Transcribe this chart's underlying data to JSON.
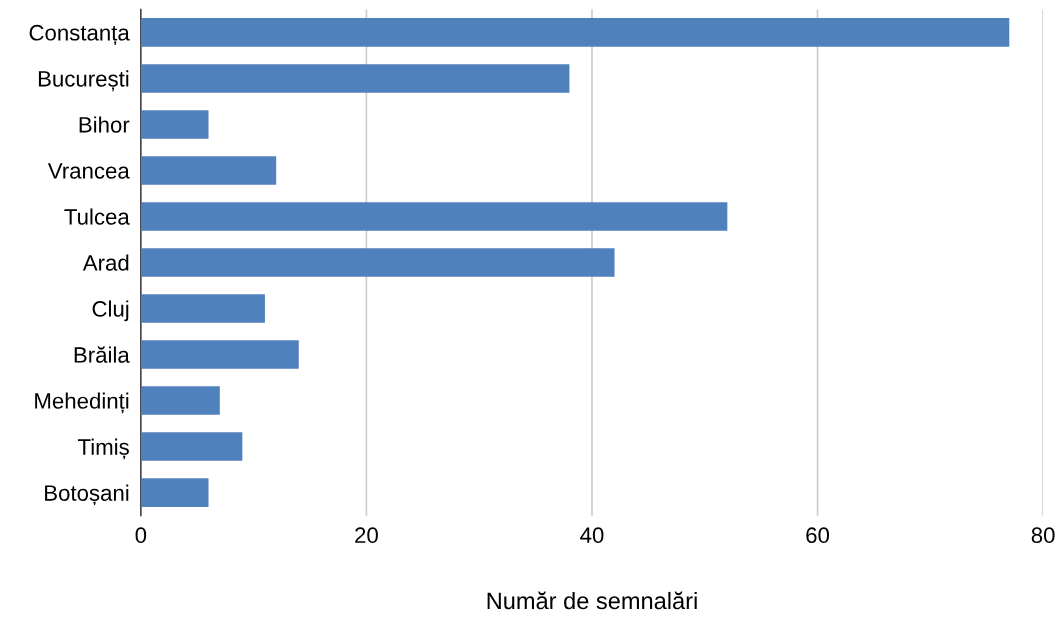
{
  "chart_data": {
    "type": "bar",
    "orientation": "horizontal",
    "xlabel": "Număr de semnalări",
    "categories": [
      "Constanța",
      "București",
      "Bihor",
      "Vrancea",
      "Tulcea",
      "Arad",
      "Cluj",
      "Brăila",
      "Mehedinți",
      "Timiș",
      "Botoșani"
    ],
    "values": [
      77,
      38,
      6,
      12,
      52,
      42,
      11,
      14,
      7,
      9,
      6
    ],
    "color": "#4f81bd",
    "xlim": [
      0,
      80
    ],
    "xticks": [
      0,
      20,
      40,
      60,
      80
    ],
    "grid": "x",
    "legend": false
  }
}
